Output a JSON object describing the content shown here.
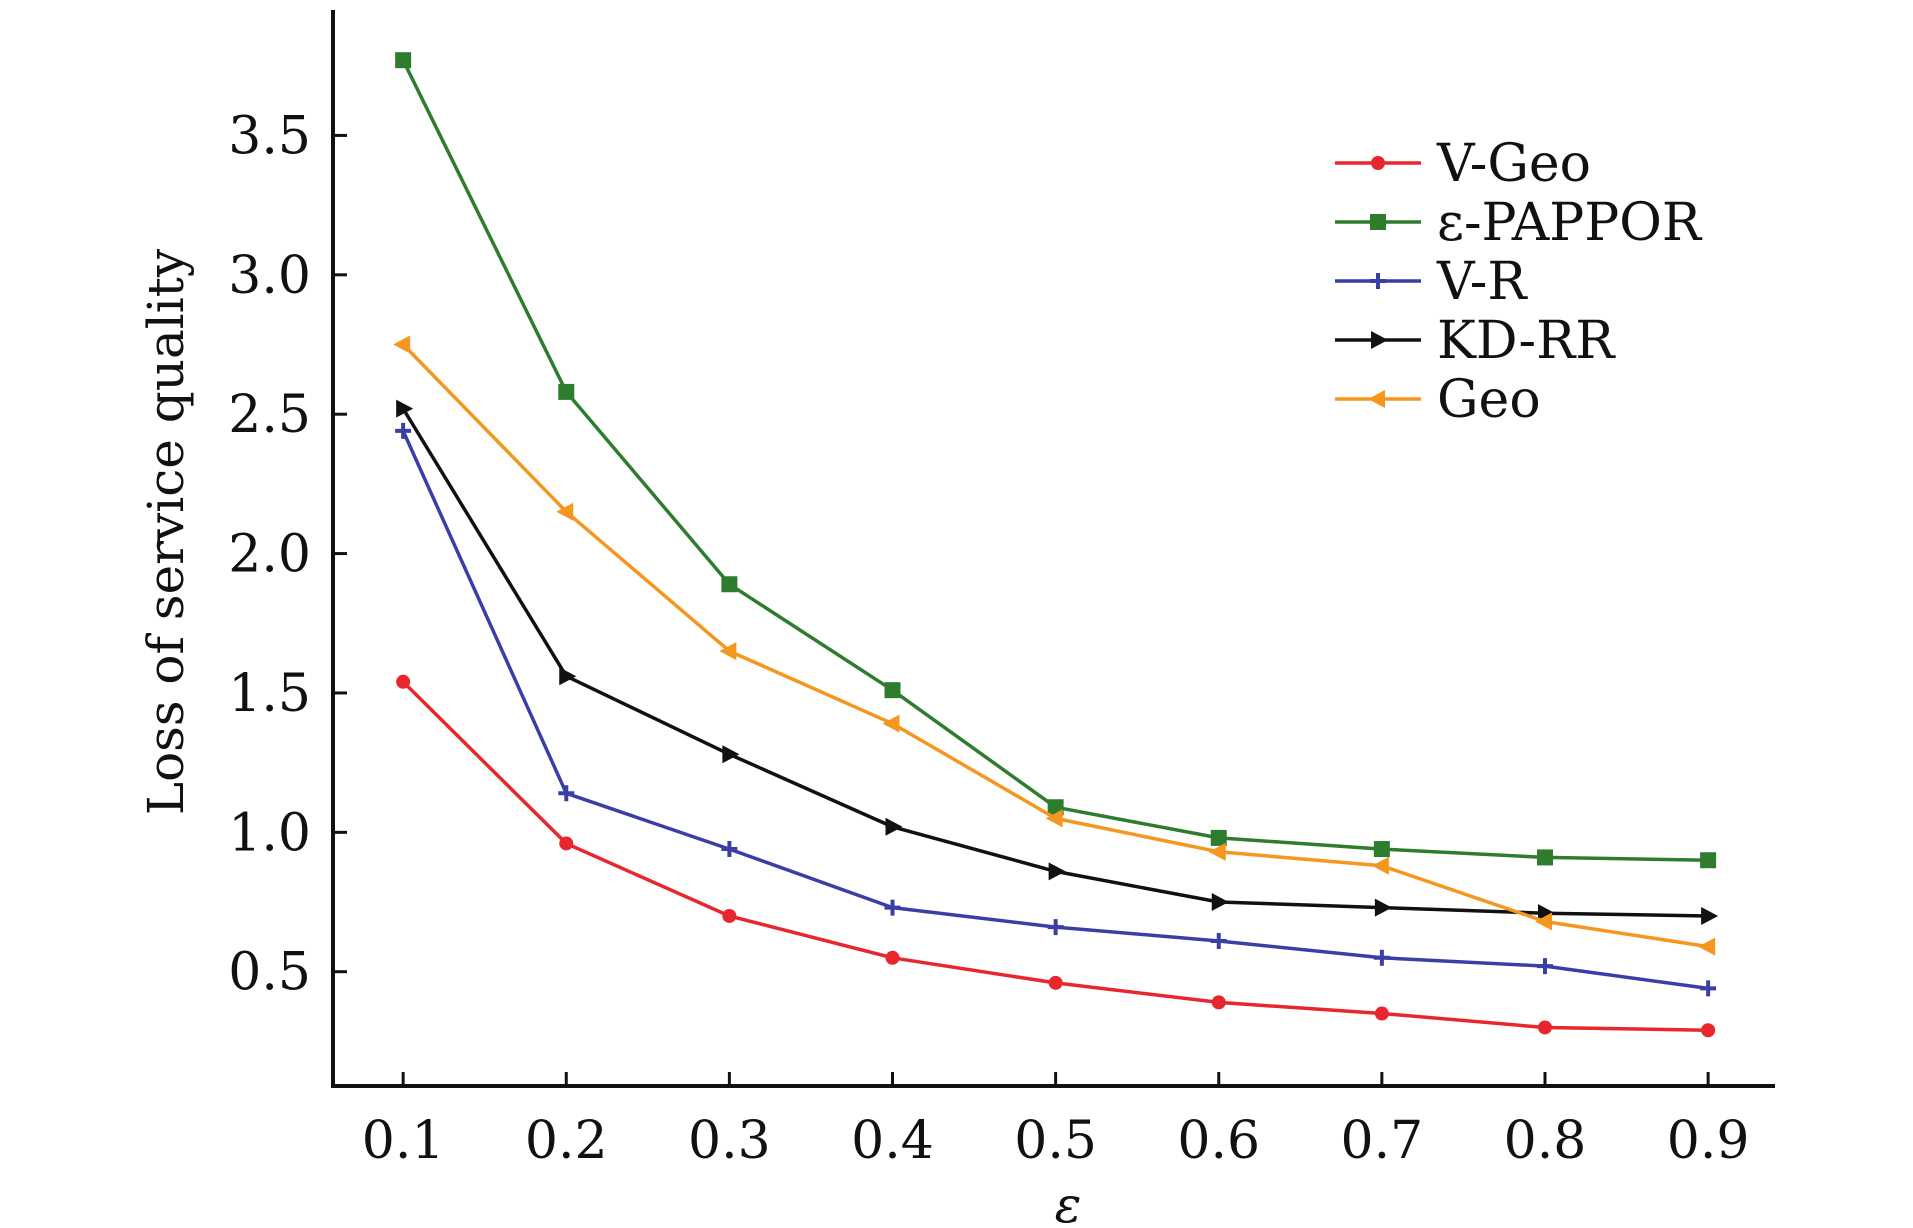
{
  "chart_data": {
    "type": "line",
    "title": "",
    "xlabel": "ε",
    "ylabel": "Loss of service quality",
    "x": [
      0.1,
      0.2,
      0.3,
      0.4,
      0.5,
      0.6,
      0.7,
      0.8,
      0.9
    ],
    "x_tick_labels": [
      "0.1",
      "0.2",
      "0.3",
      "0.4",
      "0.5",
      "0.6",
      "0.7",
      "0.8",
      "0.9"
    ],
    "y_ticks": [
      0.5,
      1.0,
      1.5,
      2.0,
      2.5,
      3.0,
      3.5
    ],
    "y_tick_labels": [
      "0.5",
      "1.0",
      "1.5",
      "2.0",
      "2.5",
      "3.0",
      "3.5"
    ],
    "xlim": [
      0.057,
      0.941
    ],
    "ylim": [
      0.09,
      3.95
    ],
    "grid": false,
    "legend_position": "top-right",
    "series": [
      {
        "name": "V-Geo",
        "color": "#e8262d",
        "marker": "circle",
        "values": [
          1.54,
          0.96,
          0.7,
          0.55,
          0.46,
          0.39,
          0.35,
          0.3,
          0.29
        ]
      },
      {
        "name": "ε-PAPPOR",
        "color": "#2e7d2e",
        "marker": "square",
        "values": [
          3.77,
          2.58,
          1.89,
          1.51,
          1.09,
          0.98,
          0.94,
          0.91,
          0.9
        ]
      },
      {
        "name": "V-R",
        "color": "#3a3fa8",
        "marker": "plus",
        "values": [
          2.44,
          1.14,
          0.94,
          0.73,
          0.66,
          0.61,
          0.55,
          0.52,
          0.44
        ]
      },
      {
        "name": "KD-RR",
        "color": "#111111",
        "marker": "triangle-right",
        "values": [
          2.52,
          1.56,
          1.28,
          1.02,
          0.86,
          0.75,
          0.73,
          0.71,
          0.7
        ]
      },
      {
        "name": "Geo",
        "color": "#f5961e",
        "marker": "triangle-left",
        "values": [
          2.75,
          2.15,
          1.65,
          1.39,
          1.05,
          0.93,
          0.88,
          0.68,
          0.59
        ]
      }
    ]
  }
}
